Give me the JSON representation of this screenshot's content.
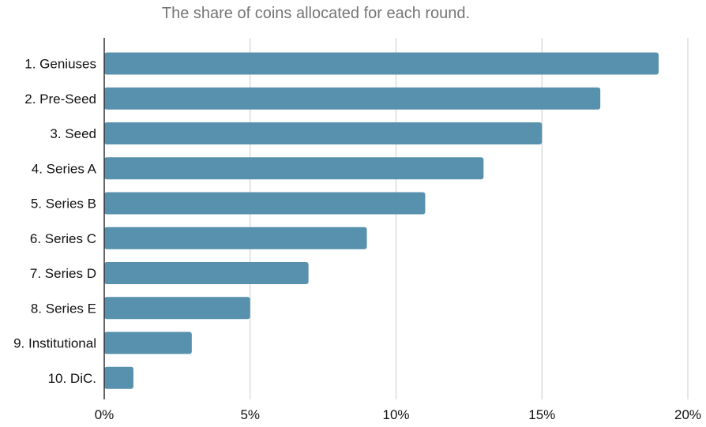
{
  "chart_data": {
    "type": "bar",
    "orientation": "horizontal",
    "title": "The share of coins allocated for each round.",
    "xlabel": "",
    "ylabel": "",
    "categories": [
      "1. Geniuses",
      "2. Pre-Seed",
      "3. Seed",
      "4. Series A",
      "5. Series B",
      "6. Series C",
      "7. Series D",
      "8. Series E",
      "9. Institutional",
      "10. DiC."
    ],
    "values": [
      19,
      17,
      15,
      13,
      11,
      9,
      7,
      5,
      3,
      1
    ],
    "xlim": [
      0,
      20
    ],
    "xticks": [
      0,
      5,
      10,
      15,
      20
    ],
    "xtick_labels": [
      "0%",
      "5%",
      "10%",
      "15%",
      "20%"
    ],
    "grid": "vertical",
    "legend": "none",
    "bar_color": "#5891ad",
    "grid_color": "#cccccc",
    "axis_color": "#333333"
  }
}
